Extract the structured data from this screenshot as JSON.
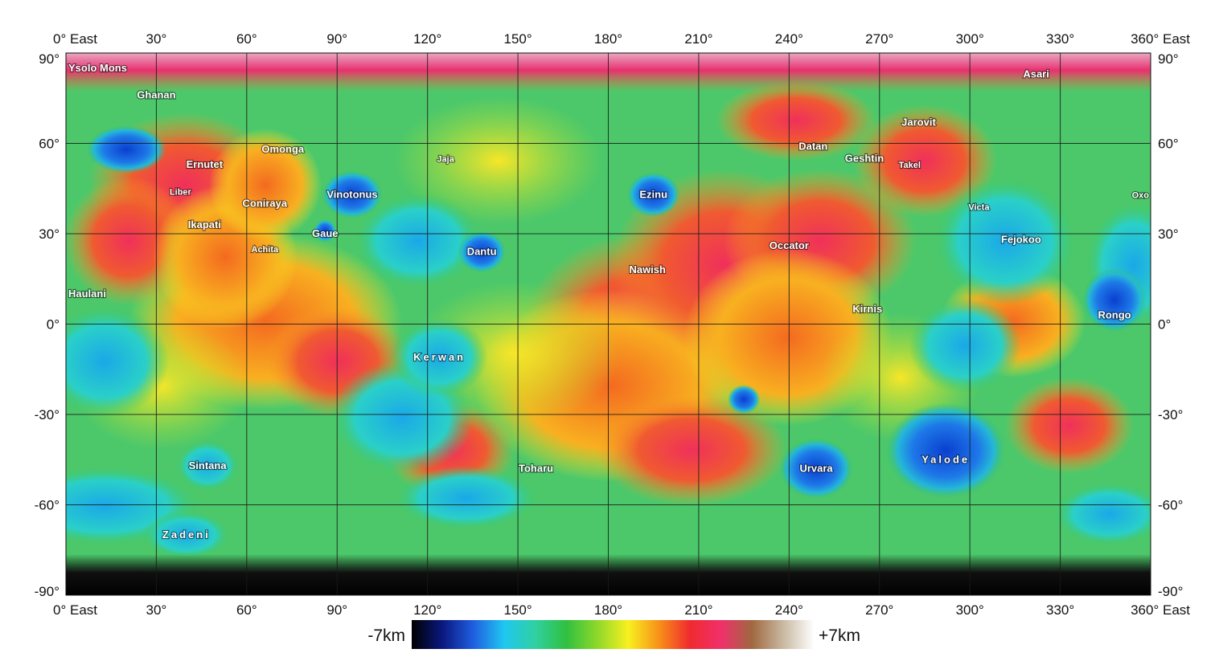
{
  "map": {
    "lon_labels": [
      "0° East",
      "30°",
      "60°",
      "90°",
      "120°",
      "150°",
      "180°",
      "210°",
      "240°",
      "270°",
      "300°",
      "330°",
      "360° East"
    ],
    "lat_labels": [
      "90°",
      "60°",
      "30°",
      "0°",
      "-30°",
      "-60°",
      "-90°"
    ],
    "features": [
      {
        "name": "Ysolo Mons",
        "lon": 13,
        "lat": 85
      },
      {
        "name": "Ghanan",
        "lon": 30,
        "lat": 76
      },
      {
        "name": "Asari",
        "lon": 322,
        "lat": 83
      },
      {
        "name": "Jarovit",
        "lon": 283,
        "lat": 67
      },
      {
        "name": "Datan",
        "lon": 248,
        "lat": 59
      },
      {
        "name": "Geshtin",
        "lon": 265,
        "lat": 55
      },
      {
        "name": "Takel",
        "lon": 280,
        "lat": 53
      },
      {
        "name": "Omonga",
        "lon": 72,
        "lat": 58
      },
      {
        "name": "Ernutet",
        "lon": 46,
        "lat": 53
      },
      {
        "name": "Jaja",
        "lon": 126,
        "lat": 55
      },
      {
        "name": "Liber",
        "lon": 38,
        "lat": 44
      },
      {
        "name": "Vinotonus",
        "lon": 95,
        "lat": 43
      },
      {
        "name": "Coniraya",
        "lon": 66,
        "lat": 40
      },
      {
        "name": "Ezinu",
        "lon": 195,
        "lat": 43
      },
      {
        "name": "Oxo",
        "lon": 359,
        "lat": 43
      },
      {
        "name": "Victa",
        "lon": 303,
        "lat": 39
      },
      {
        "name": "Ikapati",
        "lon": 46,
        "lat": 33
      },
      {
        "name": "Gaue",
        "lon": 86,
        "lat": 30
      },
      {
        "name": "Fejokoo",
        "lon": 317,
        "lat": 28
      },
      {
        "name": "Occator",
        "lon": 240,
        "lat": 26
      },
      {
        "name": "Achita",
        "lon": 66,
        "lat": 25
      },
      {
        "name": "Dantu",
        "lon": 138,
        "lat": 24
      },
      {
        "name": "Nawish",
        "lon": 193,
        "lat": 18
      },
      {
        "name": "Haulani",
        "lon": 11,
        "lat": 10
      },
      {
        "name": "Kirnis",
        "lon": 266,
        "lat": 5
      },
      {
        "name": "Rongo",
        "lon": 348,
        "lat": 3
      },
      {
        "name": "Kerwan",
        "lon": 124,
        "lat": -11
      },
      {
        "name": "Yalode",
        "lon": 292,
        "lat": -45
      },
      {
        "name": "Sintana",
        "lon": 47,
        "lat": -47
      },
      {
        "name": "Toharu",
        "lon": 156,
        "lat": -48
      },
      {
        "name": "Urvara",
        "lon": 249,
        "lat": -48
      },
      {
        "name": "Zadeni",
        "lon": 40,
        "lat": -70
      }
    ]
  },
  "scale": {
    "min_label": "-7km",
    "max_label": "+7km",
    "min_km": -7,
    "max_km": 7,
    "colors": [
      "#000000",
      "#0a1880",
      "#1f5fe0",
      "#1fc8f0",
      "#30d0a0",
      "#30c040",
      "#8ed82a",
      "#f8f020",
      "#f89018",
      "#f02a30",
      "#f0306a",
      "#a06840",
      "#c8b8a0",
      "#ffffff"
    ]
  }
}
